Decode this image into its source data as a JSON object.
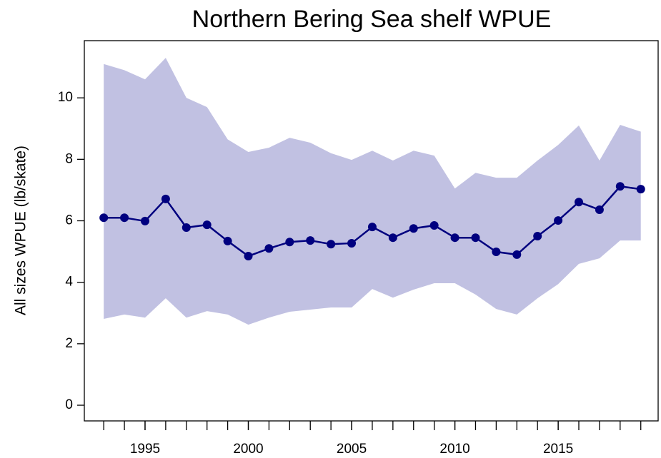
{
  "chart_data": {
    "type": "line",
    "title": "Northern Bering Sea shelf WPUE",
    "y_label": "All sizes WPUE (lb/skate)",
    "x": [
      1993,
      1994,
      1995,
      1996,
      1997,
      1998,
      1999,
      2000,
      2001,
      2002,
      2003,
      2004,
      2005,
      2006,
      2007,
      2008,
      2009,
      2010,
      2011,
      2012,
      2013,
      2014,
      2015,
      2016,
      2017,
      2018,
      2019
    ],
    "values": [
      6.1,
      6.1,
      5.99,
      6.71,
      5.78,
      5.87,
      5.34,
      4.85,
      5.1,
      5.31,
      5.36,
      5.24,
      5.27,
      5.8,
      5.45,
      5.75,
      5.85,
      5.45,
      5.45,
      4.99,
      4.9,
      5.5,
      6.01,
      6.61,
      6.36,
      7.12,
      7.03
    ],
    "upper": [
      11.1,
      10.9,
      10.6,
      11.3,
      10.0,
      9.7,
      8.65,
      8.24,
      8.38,
      8.7,
      8.54,
      8.2,
      7.98,
      8.28,
      7.96,
      8.28,
      8.12,
      7.05,
      7.56,
      7.4,
      7.4,
      7.96,
      8.47,
      9.1,
      7.96,
      9.12,
      8.9
    ],
    "lower": [
      2.81,
      2.95,
      2.85,
      3.48,
      2.85,
      3.06,
      2.95,
      2.62,
      2.85,
      3.04,
      3.11,
      3.18,
      3.18,
      3.78,
      3.5,
      3.76,
      3.97,
      3.97,
      3.6,
      3.13,
      2.95,
      3.48,
      3.94,
      4.6,
      4.78,
      5.36,
      5.36
    ],
    "color": "#00007f",
    "band_color": "#c1c1e2",
    "xlim": [
      1992.06,
      2019.84
    ],
    "ylim": [
      -0.51,
      11.86
    ],
    "xticks": [
      1995,
      2000,
      2005,
      2010,
      2015
    ],
    "yticks": [
      0,
      2,
      4,
      6,
      8,
      10
    ]
  }
}
